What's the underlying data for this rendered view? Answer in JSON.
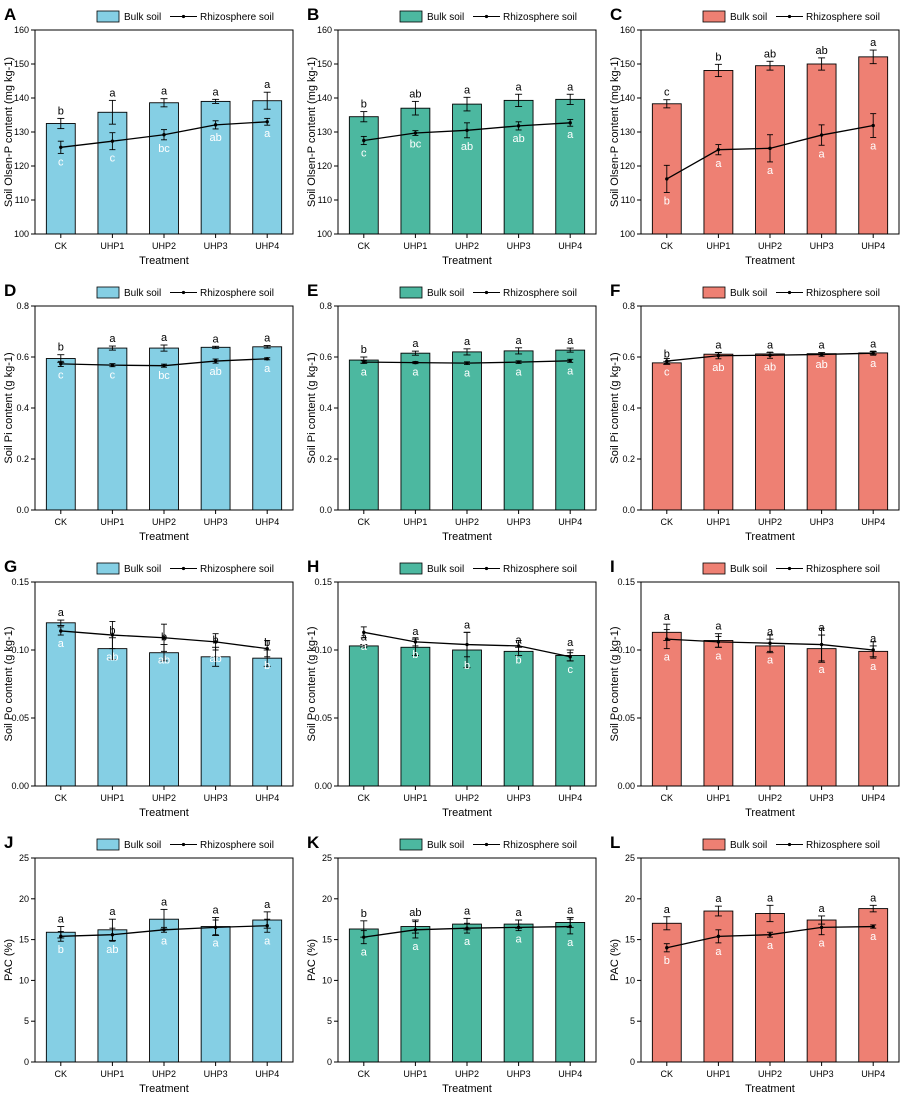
{
  "legend": {
    "bulk": "Bulk soil",
    "rhizo": "Rhizosphere soil"
  },
  "xlabel": "Treatment",
  "colors": {
    "blue": "#85cfe4",
    "green": "#4cb8a0",
    "red": "#ee8073",
    "line": "#000000"
  },
  "chart_data": [
    {
      "id": "A",
      "type": "bar",
      "color": "blue",
      "ylabel": "Soil Olsen-P content (mg kg-1)",
      "ylim": [
        100,
        160
      ],
      "yticks": [
        100,
        110,
        120,
        130,
        140,
        150,
        160
      ],
      "decimals": 0,
      "categories": [
        "CK",
        "UHP1",
        "UHP2",
        "UHP3",
        "UHP4"
      ],
      "bulk": [
        132.5,
        135.8,
        138.6,
        139.0,
        139.2
      ],
      "bulk_err": [
        1.5,
        3.5,
        1.2,
        0.6,
        2.5
      ],
      "bulk_sig": [
        "b",
        "a",
        "a",
        "a",
        "a"
      ],
      "rhizo": [
        125.5,
        127.3,
        129.2,
        132.1,
        133.0
      ],
      "rhizo_err": [
        1.8,
        2.5,
        1.5,
        1.2,
        1.0
      ],
      "rhizo_sig": [
        "c",
        "c",
        "bc",
        "ab",
        "a"
      ]
    },
    {
      "id": "B",
      "type": "bar",
      "color": "green",
      "ylabel": "Soil Olsen-P content (mg kg-1)",
      "ylim": [
        100,
        160
      ],
      "yticks": [
        100,
        110,
        120,
        130,
        140,
        150,
        160
      ],
      "decimals": 0,
      "categories": [
        "CK",
        "UHP1",
        "UHP2",
        "UHP3",
        "UHP4"
      ],
      "bulk": [
        134.5,
        137.0,
        138.2,
        139.3,
        139.6
      ],
      "bulk_err": [
        1.5,
        2.0,
        2.0,
        1.8,
        1.5
      ],
      "bulk_sig": [
        "b",
        "ab",
        "a",
        "a",
        "a"
      ],
      "rhizo": [
        127.5,
        129.7,
        130.5,
        131.8,
        132.7
      ],
      "rhizo_err": [
        1.2,
        0.7,
        2.2,
        1.2,
        1.0
      ],
      "rhizo_sig": [
        "c",
        "bc",
        "ab",
        "ab",
        "a"
      ]
    },
    {
      "id": "C",
      "type": "bar",
      "color": "red",
      "ylabel": "Soil Olsen-P content (mg kg-1)",
      "ylim": [
        100,
        160
      ],
      "yticks": [
        100,
        110,
        120,
        130,
        140,
        150,
        160
      ],
      "decimals": 0,
      "categories": [
        "CK",
        "UHP1",
        "UHP2",
        "UHP3",
        "UHP4"
      ],
      "bulk": [
        138.3,
        148.1,
        149.5,
        150.0,
        152.1
      ],
      "bulk_err": [
        1.2,
        1.8,
        1.3,
        1.8,
        2.0
      ],
      "bulk_sig": [
        "c",
        "b",
        "ab",
        "ab",
        "a"
      ],
      "rhizo": [
        116.2,
        124.8,
        125.2,
        129.1,
        131.9
      ],
      "rhizo_err": [
        4.0,
        1.5,
        4.0,
        3.0,
        3.5
      ],
      "rhizo_sig": [
        "b",
        "a",
        "a",
        "a",
        "a"
      ]
    },
    {
      "id": "D",
      "type": "bar",
      "color": "blue",
      "ylabel": "Soil Pi content (g kg-1)",
      "ylim": [
        0,
        0.8
      ],
      "yticks": [
        0,
        0.2,
        0.4,
        0.6,
        0.8
      ],
      "decimals": 1,
      "categories": [
        "CK",
        "UHP1",
        "UHP2",
        "UHP3",
        "UHP4"
      ],
      "bulk": [
        0.594,
        0.635,
        0.635,
        0.638,
        0.64
      ],
      "bulk_err": [
        0.015,
        0.008,
        0.012,
        0.004,
        0.005
      ],
      "bulk_sig": [
        "b",
        "a",
        "a",
        "a",
        "a"
      ],
      "rhizo": [
        0.573,
        0.568,
        0.566,
        0.584,
        0.593
      ],
      "rhizo_err": [
        0.01,
        0.006,
        0.006,
        0.008,
        0.004
      ],
      "rhizo_sig": [
        "c",
        "c",
        "bc",
        "ab",
        "a"
      ]
    },
    {
      "id": "E",
      "type": "bar",
      "color": "green",
      "ylabel": "Soil Pi content (g kg-1)",
      "ylim": [
        0,
        0.8
      ],
      "yticks": [
        0,
        0.2,
        0.4,
        0.6,
        0.8
      ],
      "decimals": 1,
      "categories": [
        "CK",
        "UHP1",
        "UHP2",
        "UHP3",
        "UHP4"
      ],
      "bulk": [
        0.588,
        0.615,
        0.62,
        0.624,
        0.627
      ],
      "bulk_err": [
        0.012,
        0.008,
        0.012,
        0.012,
        0.008
      ],
      "bulk_sig": [
        "b",
        "a",
        "a",
        "a",
        "a"
      ],
      "rhizo": [
        0.58,
        0.578,
        0.576,
        0.58,
        0.585
      ],
      "rhizo_err": [
        0.005,
        0.004,
        0.005,
        0.005,
        0.006
      ],
      "rhizo_sig": [
        "a",
        "a",
        "a",
        "a",
        "a"
      ]
    },
    {
      "id": "F",
      "type": "bar",
      "color": "red",
      "ylabel": "Soil Pi content (g kg-1)",
      "ylim": [
        0,
        0.8
      ],
      "yticks": [
        0,
        0.2,
        0.4,
        0.6,
        0.8
      ],
      "decimals": 1,
      "categories": [
        "CK",
        "UHP1",
        "UHP2",
        "UHP3",
        "UHP4"
      ],
      "bulk": [
        0.577,
        0.611,
        0.612,
        0.613,
        0.616
      ],
      "bulk_err": [
        0.006,
        0.007,
        0.006,
        0.004,
        0.005
      ],
      "bulk_sig": [
        "b",
        "a",
        "a",
        "a",
        "a"
      ],
      "rhizo": [
        0.584,
        0.605,
        0.607,
        0.61,
        0.615
      ],
      "rhizo_err": [
        0.01,
        0.012,
        0.012,
        0.007,
        0.008
      ],
      "rhizo_sig": [
        "c",
        "ab",
        "ab",
        "ab",
        "a"
      ]
    },
    {
      "id": "G",
      "type": "bar",
      "color": "blue",
      "ylabel": "Soil Po content (g kg-1)",
      "ylim": [
        0,
        0.15
      ],
      "yticks": [
        0,
        0.05,
        0.1,
        0.15
      ],
      "decimals": 2,
      "categories": [
        "CK",
        "UHP1",
        "UHP2",
        "UHP3",
        "UHP4"
      ],
      "bulk": [
        0.12,
        0.101,
        0.098,
        0.095,
        0.094
      ],
      "bulk_err": [
        0.002,
        0.008,
        0.006,
        0.007,
        0.006
      ],
      "bulk_sig": [
        "a",
        "b",
        "b",
        "b",
        "b"
      ],
      "rhizo": [
        0.114,
        0.111,
        0.109,
        0.106,
        0.101
      ],
      "rhizo_err": [
        0.003,
        0.01,
        0.01,
        0.006,
        0.006
      ],
      "rhizo_sig": [
        "a",
        "ab",
        "ab",
        "ab",
        "b"
      ]
    },
    {
      "id": "H",
      "type": "bar",
      "color": "green",
      "ylabel": "Soil Po content (g kg-1)",
      "ylim": [
        0,
        0.15
      ],
      "yticks": [
        0,
        0.05,
        0.1,
        0.15
      ],
      "decimals": 2,
      "categories": [
        "CK",
        "UHP1",
        "UHP2",
        "UHP3",
        "UHP4"
      ],
      "bulk": [
        0.103,
        0.102,
        0.1,
        0.099,
        0.096
      ],
      "bulk_err": [
        0.001,
        0.006,
        0.013,
        0.003,
        0.004
      ],
      "bulk_sig": [
        "a",
        "a",
        "a",
        "a",
        "a"
      ],
      "rhizo": [
        0.113,
        0.106,
        0.104,
        0.103,
        0.095
      ],
      "rhizo_err": [
        0.004,
        0.003,
        0.009,
        0.004,
        0.003
      ],
      "rhizo_sig": [
        "a",
        "b",
        "b",
        "b",
        "c"
      ]
    },
    {
      "id": "I",
      "type": "bar",
      "color": "red",
      "ylabel": "Soil Po content (g kg-1)",
      "ylim": [
        0,
        0.15
      ],
      "yticks": [
        0,
        0.05,
        0.1,
        0.15
      ],
      "decimals": 2,
      "categories": [
        "CK",
        "UHP1",
        "UHP2",
        "UHP3",
        "UHP4"
      ],
      "bulk": [
        0.113,
        0.107,
        0.103,
        0.101,
        0.099
      ],
      "bulk_err": [
        0.006,
        0.005,
        0.005,
        0.01,
        0.004
      ],
      "bulk_sig": [
        "a",
        "a",
        "a",
        "a",
        "a"
      ],
      "rhizo": [
        0.108,
        0.106,
        0.105,
        0.104,
        0.1
      ],
      "rhizo_err": [
        0.007,
        0.004,
        0.006,
        0.012,
        0.006
      ],
      "rhizo_sig": [
        "a",
        "a",
        "a",
        "a",
        "a"
      ]
    },
    {
      "id": "J",
      "type": "bar",
      "color": "blue",
      "ylabel": "PAC (%)",
      "ylim": [
        0,
        25
      ],
      "yticks": [
        0,
        5,
        10,
        15,
        20,
        25
      ],
      "decimals": 0,
      "categories": [
        "CK",
        "UHP1",
        "UHP2",
        "UHP3",
        "UHP4"
      ],
      "bulk": [
        15.9,
        16.2,
        17.5,
        16.6,
        17.4
      ],
      "bulk_err": [
        0.7,
        1.3,
        1.2,
        1.1,
        1.0
      ],
      "bulk_sig": [
        "a",
        "a",
        "a",
        "a",
        "a"
      ],
      "rhizo": [
        15.4,
        15.6,
        16.2,
        16.5,
        16.7
      ],
      "rhizo_err": [
        0.6,
        0.8,
        0.3,
        0.9,
        0.8
      ],
      "rhizo_sig": [
        "b",
        "ab",
        "a",
        "a",
        "a"
      ]
    },
    {
      "id": "K",
      "type": "bar",
      "color": "green",
      "ylabel": "PAC (%)",
      "ylim": [
        0,
        25
      ],
      "yticks": [
        0,
        5,
        10,
        15,
        20,
        25
      ],
      "decimals": 0,
      "categories": [
        "CK",
        "UHP1",
        "UHP2",
        "UHP3",
        "UHP4"
      ],
      "bulk": [
        16.3,
        16.6,
        16.9,
        16.9,
        17.1
      ],
      "bulk_err": [
        1.0,
        0.8,
        0.7,
        0.5,
        0.6
      ],
      "bulk_sig": [
        "b",
        "ab",
        "a",
        "a",
        "a"
      ],
      "rhizo": [
        15.3,
        16.2,
        16.4,
        16.5,
        16.6
      ],
      "rhizo_err": [
        0.8,
        1.0,
        0.6,
        0.4,
        0.9
      ],
      "rhizo_sig": [
        "a",
        "a",
        "a",
        "a",
        "a"
      ]
    },
    {
      "id": "L",
      "type": "bar",
      "color": "red",
      "ylabel": "PAC (%)",
      "ylim": [
        0,
        25
      ],
      "yticks": [
        0,
        5,
        10,
        15,
        20,
        25
      ],
      "decimals": 0,
      "categories": [
        "CK",
        "UHP1",
        "UHP2",
        "UHP3",
        "UHP4"
      ],
      "bulk": [
        17.0,
        18.5,
        18.2,
        17.4,
        18.8
      ],
      "bulk_err": [
        0.8,
        0.6,
        1.0,
        0.5,
        0.4
      ],
      "bulk_sig": [
        "a",
        "a",
        "a",
        "a",
        "a"
      ],
      "rhizo": [
        14.0,
        15.4,
        15.6,
        16.5,
        16.6
      ],
      "rhizo_err": [
        0.5,
        0.8,
        0.3,
        0.9,
        0.2
      ],
      "rhizo_sig": [
        "b",
        "a",
        "a",
        "a",
        "a"
      ]
    }
  ]
}
